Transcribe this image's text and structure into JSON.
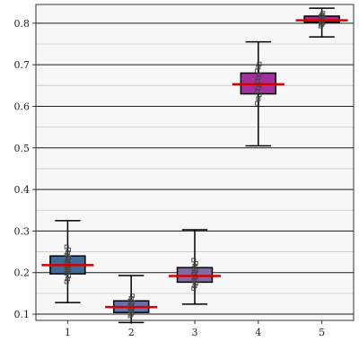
{
  "chart_data": {
    "type": "box",
    "title": "",
    "xlabel": "",
    "ylabel": "",
    "categories": [
      "1",
      "2",
      "3",
      "4",
      "5"
    ],
    "ylim": [
      0.085,
      0.845
    ],
    "yticks": [
      0.1,
      0.2,
      0.3,
      0.4,
      0.5,
      0.6,
      0.7,
      0.8
    ],
    "ytick_labels": [
      "0.1",
      "0.2",
      "0.3",
      "0.4",
      "0.5",
      "0.6",
      "0.7",
      "0.8"
    ],
    "grid": {
      "major_y": true,
      "minor_y": true
    },
    "boxes": [
      {
        "category": "1",
        "whisker_low": 0.128,
        "q1": 0.197,
        "median": 0.218,
        "q3": 0.24,
        "whisker_high": 0.325,
        "points": [
          0.178,
          0.185,
          0.192,
          0.198,
          0.203,
          0.208,
          0.212,
          0.216,
          0.22,
          0.225,
          0.23,
          0.236,
          0.242,
          0.248,
          0.255,
          0.262
        ]
      },
      {
        "category": "2",
        "whisker_low": 0.08,
        "q1": 0.104,
        "median": 0.117,
        "q3": 0.132,
        "whisker_high": 0.193,
        "points": [
          0.096,
          0.1,
          0.104,
          0.108,
          0.112,
          0.116,
          0.12,
          0.124,
          0.128,
          0.132,
          0.138,
          0.144
        ]
      },
      {
        "category": "3",
        "whisker_low": 0.124,
        "q1": 0.177,
        "median": 0.192,
        "q3": 0.212,
        "whisker_high": 0.303,
        "points": [
          0.162,
          0.168,
          0.174,
          0.18,
          0.186,
          0.19,
          0.196,
          0.2,
          0.205,
          0.21,
          0.216,
          0.222,
          0.23
        ]
      },
      {
        "category": "4",
        "whisker_low": 0.505,
        "q1": 0.63,
        "median": 0.653,
        "q3": 0.68,
        "whisker_high": 0.755,
        "points": [
          0.607,
          0.618,
          0.628,
          0.636,
          0.644,
          0.652,
          0.66,
          0.668,
          0.676,
          0.685,
          0.694,
          0.702
        ]
      },
      {
        "category": "5",
        "whisker_low": 0.767,
        "q1": 0.802,
        "median": 0.807,
        "q3": 0.817,
        "whisker_high": 0.836,
        "points": [
          0.793,
          0.797,
          0.8,
          0.804,
          0.808,
          0.812,
          0.816,
          0.82,
          0.824
        ]
      }
    ],
    "colors": {
      "boxes": [
        "#3e6c9a",
        "#6b6fa3",
        "#7f6aa4",
        "#a3309f",
        "#c0227c"
      ],
      "median": "#d40000",
      "grid_major": "#1a1a1a",
      "grid_minor": "#c8c8c8",
      "background": "#f7f7f7",
      "frame": "#333333",
      "points": "#444444"
    }
  }
}
